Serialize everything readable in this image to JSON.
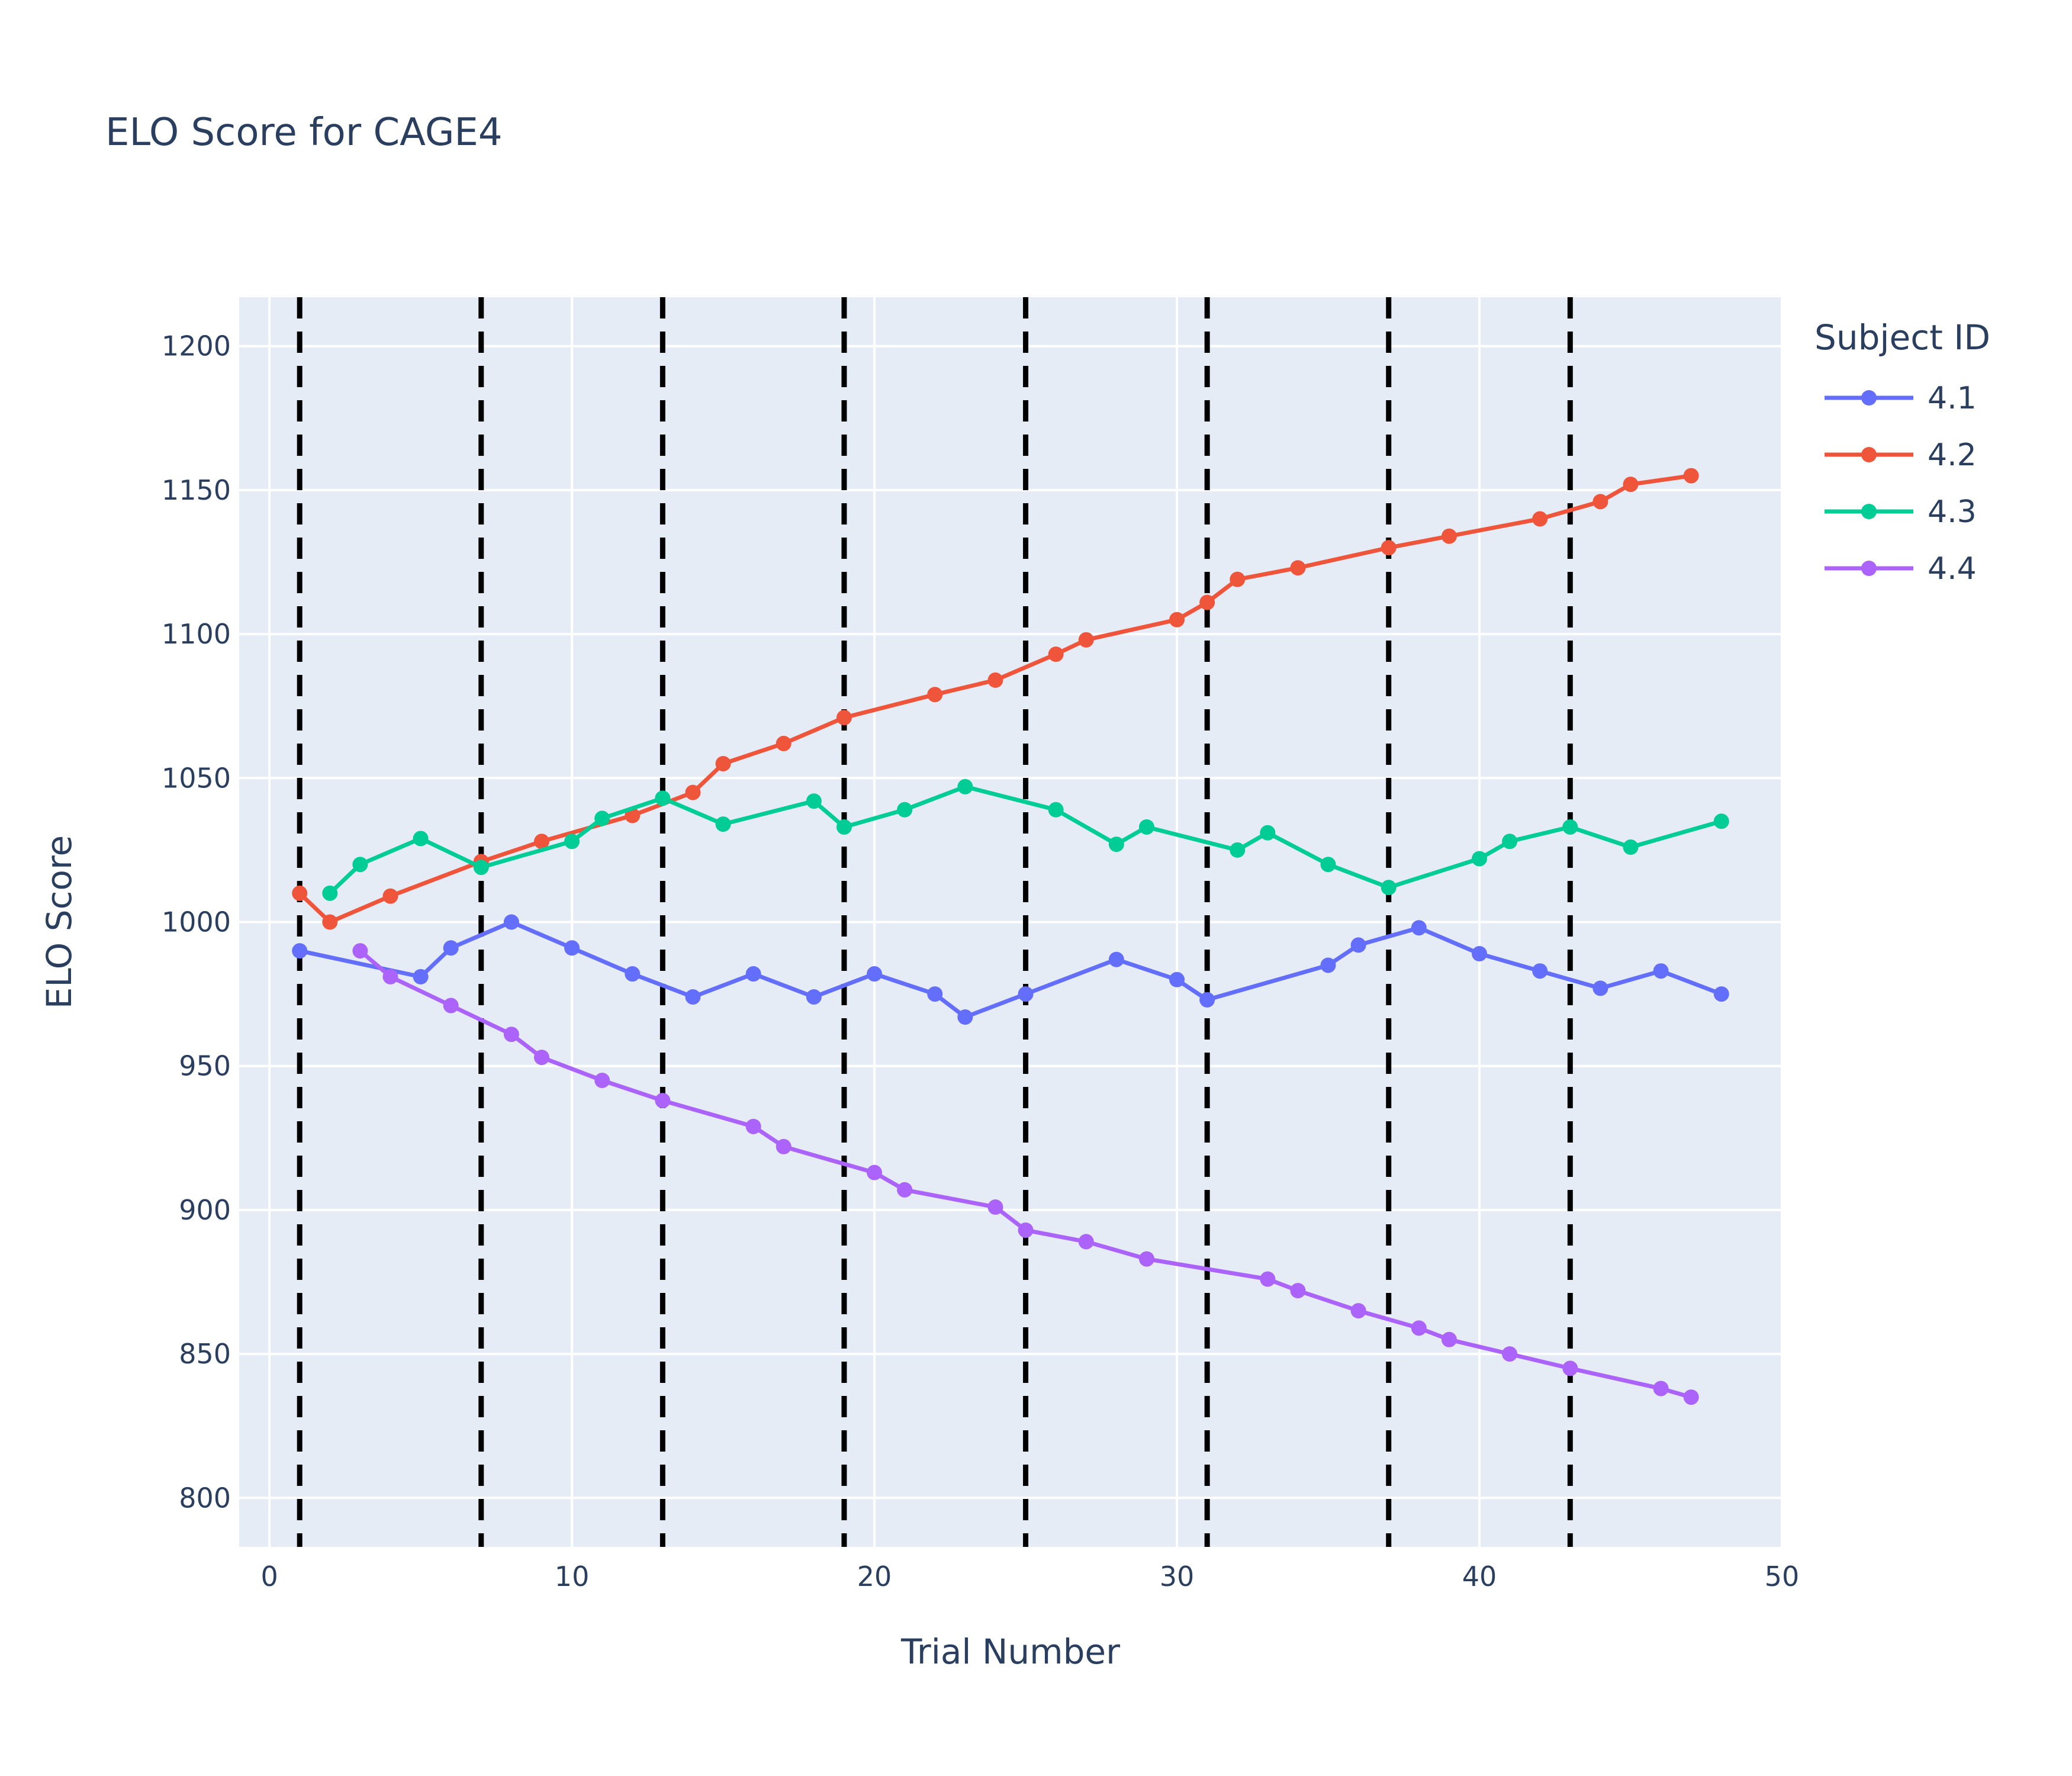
{
  "chart_data": {
    "type": "line",
    "title": "ELO Score for CAGE4",
    "xlabel": "Trial Number",
    "ylabel": "ELO Score",
    "xlim": [
      -1,
      50
    ],
    "ylim": [
      783,
      1217
    ],
    "xticks": [
      0,
      10,
      20,
      30,
      40,
      50
    ],
    "yticks": [
      800,
      850,
      900,
      950,
      1000,
      1050,
      1100,
      1150,
      1200
    ],
    "grid": true,
    "legend_title": "Subject ID",
    "legend_position": "top-right, outside plot",
    "plot_background": "#e5ecf6",
    "vertical_lines": {
      "x": [
        1,
        7,
        13,
        19,
        25,
        31,
        37,
        43
      ],
      "style": "dashed",
      "color": "#000000"
    },
    "series": [
      {
        "name": "4.1",
        "color": "#636efa",
        "x": [
          1,
          5,
          6,
          8,
          10,
          12,
          14,
          16,
          18,
          20,
          22,
          23,
          25,
          28,
          30,
          31,
          35,
          36,
          38,
          40,
          42,
          44,
          46,
          48
        ],
        "y": [
          990,
          981,
          991,
          1000,
          991,
          982,
          974,
          982,
          974,
          982,
          975,
          967,
          975,
          987,
          980,
          973,
          985,
          992,
          998,
          989,
          983,
          977,
          983,
          975
        ]
      },
      {
        "name": "4.2",
        "color": "#ef553b",
        "x": [
          1,
          2,
          4,
          7,
          9,
          12,
          14,
          15,
          17,
          19,
          22,
          24,
          26,
          27,
          30,
          31,
          32,
          34,
          37,
          39,
          42,
          44,
          45,
          47
        ],
        "y": [
          1010,
          1000,
          1009,
          1021,
          1028,
          1037,
          1045,
          1055,
          1062,
          1071,
          1079,
          1084,
          1093,
          1098,
          1105,
          1111,
          1119,
          1123,
          1130,
          1134,
          1140,
          1146,
          1152,
          1155
        ]
      },
      {
        "name": "4.3",
        "color": "#00cc96",
        "x": [
          2,
          3,
          5,
          7,
          10,
          11,
          13,
          15,
          18,
          19,
          21,
          23,
          26,
          28,
          29,
          32,
          33,
          35,
          37,
          40,
          41,
          43,
          45,
          48
        ],
        "y": [
          1010,
          1020,
          1029,
          1019,
          1028,
          1036,
          1043,
          1034,
          1042,
          1033,
          1039,
          1047,
          1039,
          1027,
          1033,
          1025,
          1031,
          1020,
          1012,
          1022,
          1028,
          1033,
          1026,
          1035
        ]
      },
      {
        "name": "4.4",
        "color": "#ab63fa",
        "x": [
          3,
          4,
          6,
          8,
          9,
          11,
          13,
          16,
          17,
          20,
          21,
          24,
          25,
          27,
          29,
          33,
          34,
          36,
          38,
          39,
          41,
          43,
          46,
          47
        ],
        "y": [
          990,
          981,
          971,
          961,
          953,
          945,
          938,
          929,
          922,
          913,
          907,
          901,
          893,
          889,
          883,
          876,
          872,
          865,
          859,
          855,
          850,
          845,
          838,
          835
        ]
      }
    ]
  }
}
